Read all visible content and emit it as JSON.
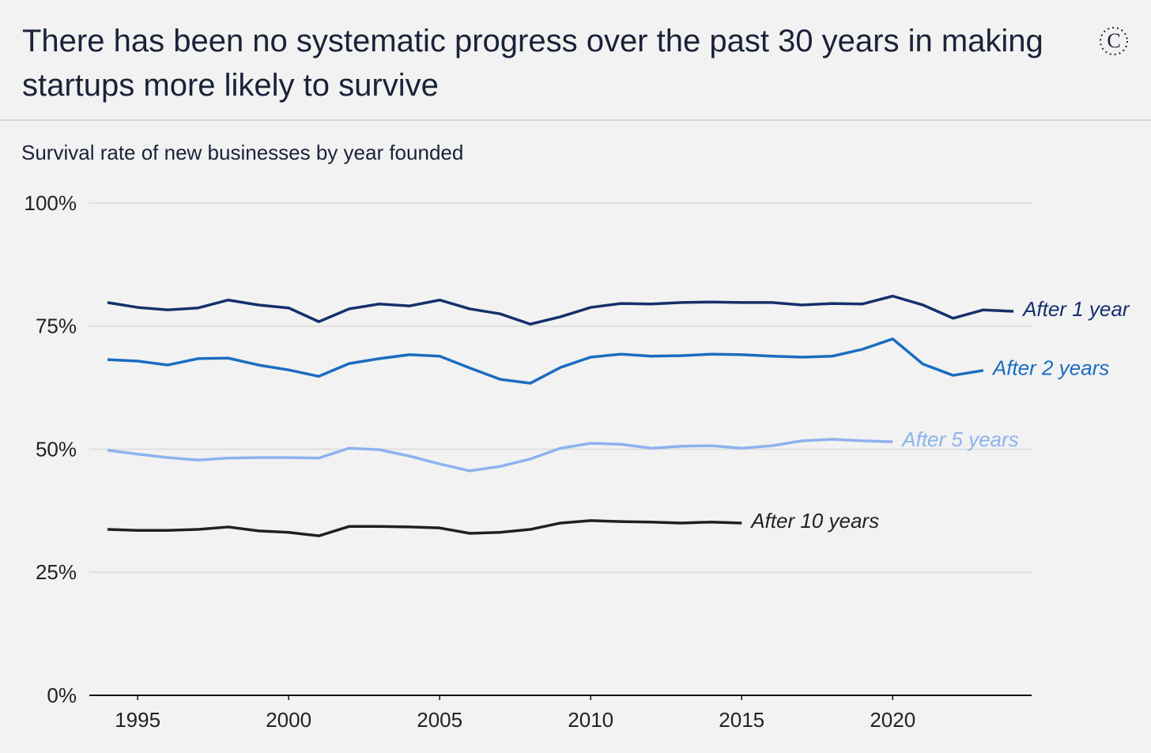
{
  "chart_data": {
    "type": "line",
    "title": "There has been no systematic progress over the past 30 years in making startups more likely to survive",
    "subtitle": "Survival rate of new businesses by year founded",
    "x": [
      1994,
      1995,
      1996,
      1997,
      1998,
      1999,
      2000,
      2001,
      2002,
      2003,
      2004,
      2005,
      2006,
      2007,
      2008,
      2009,
      2010,
      2011,
      2012,
      2013,
      2014,
      2015,
      2016,
      2017,
      2018,
      2019,
      2020,
      2021,
      2022,
      2023,
      2024
    ],
    "xlim": [
      1993.4,
      2024.6
    ],
    "xticks": [
      1995,
      2000,
      2005,
      2010,
      2015,
      2020
    ],
    "ylim": [
      0,
      100
    ],
    "yticks": [
      {
        "value": 0,
        "label": "0%"
      },
      {
        "value": 25,
        "label": "25%"
      },
      {
        "value": 50,
        "label": "50%"
      },
      {
        "value": 75,
        "label": "75%"
      },
      {
        "value": 100,
        "label": "100%"
      }
    ],
    "grid": true,
    "series": [
      {
        "name": "After 1 year",
        "color": "#15306b",
        "values": [
          79.8,
          78.8,
          78.3,
          78.7,
          80.3,
          79.3,
          78.7,
          75.9,
          78.5,
          79.5,
          79.1,
          80.3,
          78.5,
          77.5,
          75.4,
          76.9,
          78.8,
          79.6,
          79.5,
          79.8,
          79.9,
          79.8,
          79.8,
          79.3,
          79.6,
          79.5,
          81.1,
          79.3,
          76.6,
          78.3,
          78.0
        ]
      },
      {
        "name": "After 2 years",
        "color": "#1a6dc0",
        "values": [
          68.2,
          67.9,
          67.1,
          68.4,
          68.5,
          67.1,
          66.1,
          64.8,
          67.4,
          68.4,
          69.2,
          68.9,
          66.5,
          64.2,
          63.4,
          66.6,
          68.7,
          69.3,
          68.9,
          69.0,
          69.3,
          69.2,
          68.9,
          68.7,
          68.9,
          70.3,
          72.4,
          67.3,
          65.0,
          66.0,
          null
        ]
      },
      {
        "name": "After 5 years",
        "color": "#8db2ee",
        "values": [
          49.8,
          49.0,
          48.3,
          47.8,
          48.2,
          48.3,
          48.3,
          48.2,
          50.2,
          49.9,
          48.6,
          47.0,
          45.6,
          46.5,
          48.0,
          50.2,
          51.2,
          51.0,
          50.2,
          50.6,
          50.7,
          50.2,
          50.7,
          51.7,
          52.0,
          51.7,
          51.5,
          null,
          null,
          null,
          null
        ]
      },
      {
        "name": "After 10 years",
        "color": "#1d2126",
        "values": [
          33.7,
          33.5,
          33.5,
          33.7,
          34.2,
          33.4,
          33.1,
          32.4,
          34.3,
          34.3,
          34.2,
          34.0,
          32.9,
          33.1,
          33.7,
          35.0,
          35.5,
          35.3,
          35.2,
          35.0,
          35.2,
          35.0,
          null,
          null,
          null,
          null,
          null,
          null,
          null,
          null,
          null
        ]
      }
    ]
  },
  "logo": "C"
}
